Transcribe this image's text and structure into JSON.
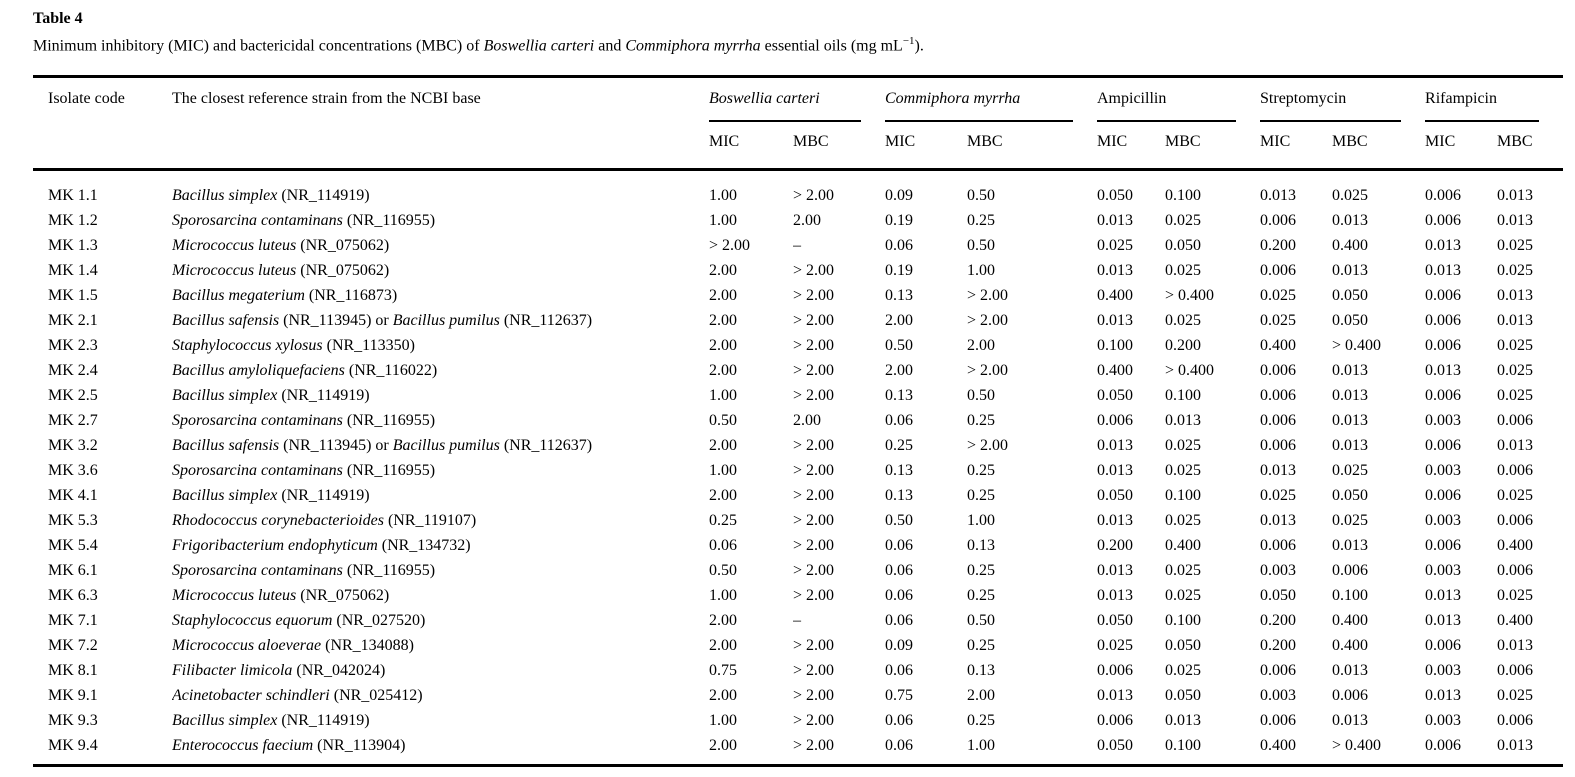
{
  "table": {
    "label": "Table 4",
    "caption": {
      "text_1": "Minimum inhibitory (MIC) and bactericidal concentrations (MBC) of ",
      "italic_1": "Boswellia carteri",
      "text_2": " and ",
      "italic_2": "Commiphora myrrha",
      "text_3": " essential oils (mg mL",
      "superscript": "−1",
      "text_4": ")."
    },
    "header": {
      "col_isolate": "Isolate code",
      "col_strain": "The closest reference strain from the NCBI base",
      "groups": [
        {
          "label": "Boswellia carteri",
          "italic": true
        },
        {
          "label": "Commiphora myrrha",
          "italic": true
        },
        {
          "label": "Ampicillin",
          "italic": false
        },
        {
          "label": "Streptomycin",
          "italic": false
        },
        {
          "label": "Rifampicin",
          "italic": false
        }
      ],
      "sub_mic": "MIC",
      "sub_mbc": "MBC"
    },
    "rows": [
      {
        "code": "MK 1.1",
        "strain": [
          {
            "species": "Bacillus simplex",
            "accession": "(NR_114919)"
          }
        ],
        "values": [
          "1.00",
          "> 2.00",
          "0.09",
          "0.50",
          "0.050",
          "0.100",
          "0.013",
          "0.025",
          "0.006",
          "0.013"
        ]
      },
      {
        "code": "MK 1.2",
        "strain": [
          {
            "species": "Sporosarcina contaminans",
            "accession": "(NR_116955)"
          }
        ],
        "values": [
          "1.00",
          "2.00",
          "0.19",
          "0.25",
          "0.013",
          "0.025",
          "0.006",
          "0.013",
          "0.006",
          "0.013"
        ]
      },
      {
        "code": "MK 1.3",
        "strain": [
          {
            "species": "Micrococcus luteus",
            "accession": "(NR_075062)"
          }
        ],
        "values": [
          "> 2.00",
          "–",
          "0.06",
          "0.50",
          "0.025",
          "0.050",
          "0.200",
          "0.400",
          "0.013",
          "0.025"
        ]
      },
      {
        "code": "MK 1.4",
        "strain": [
          {
            "species": "Micrococcus luteus",
            "accession": "(NR_075062)"
          }
        ],
        "values": [
          "2.00",
          "> 2.00",
          "0.19",
          "1.00",
          "0.013",
          "0.025",
          "0.006",
          "0.013",
          "0.013",
          "0.025"
        ]
      },
      {
        "code": "MK 1.5",
        "strain": [
          {
            "species": "Bacillus megaterium",
            "accession": "(NR_116873)"
          }
        ],
        "values": [
          "2.00",
          "> 2.00",
          "0.13",
          "> 2.00",
          "0.400",
          "> 0.400",
          "0.025",
          "0.050",
          "0.006",
          "0.013"
        ]
      },
      {
        "code": "MK 2.1",
        "strain": [
          {
            "species": "Bacillus safensis",
            "accession": "(NR_113945)"
          },
          {
            "species": "Bacillus pumilus",
            "accession": "(NR_112637)"
          }
        ],
        "values": [
          "2.00",
          "> 2.00",
          "2.00",
          "> 2.00",
          "0.013",
          "0.025",
          "0.025",
          "0.050",
          "0.006",
          "0.013"
        ]
      },
      {
        "code": "MK 2.3",
        "strain": [
          {
            "species": "Staphylococcus xylosus",
            "accession": "(NR_113350)"
          }
        ],
        "values": [
          "2.00",
          "> 2.00",
          "0.50",
          "2.00",
          "0.100",
          "0.200",
          "0.400",
          "> 0.400",
          "0.006",
          "0.025"
        ]
      },
      {
        "code": "MK 2.4",
        "strain": [
          {
            "species": "Bacillus amyloliquefaciens",
            "accession": "(NR_116022)"
          }
        ],
        "values": [
          "2.00",
          "> 2.00",
          "2.00",
          "> 2.00",
          "0.400",
          "> 0.400",
          "0.006",
          "0.013",
          "0.013",
          "0.025"
        ]
      },
      {
        "code": "MK 2.5",
        "strain": [
          {
            "species": "Bacillus simplex",
            "accession": "(NR_114919)"
          }
        ],
        "values": [
          "1.00",
          "> 2.00",
          "0.13",
          "0.50",
          "0.050",
          "0.100",
          "0.006",
          "0.013",
          "0.006",
          "0.025"
        ]
      },
      {
        "code": "MK 2.7",
        "strain": [
          {
            "species": "Sporosarcina contaminans",
            "accession": "(NR_116955)"
          }
        ],
        "values": [
          "0.50",
          "2.00",
          "0.06",
          "0.25",
          "0.006",
          "0.013",
          "0.006",
          "0.013",
          "0.003",
          "0.006"
        ]
      },
      {
        "code": "MK 3.2",
        "strain": [
          {
            "species": "Bacillus safensis",
            "accession": "(NR_113945)"
          },
          {
            "species": "Bacillus pumilus",
            "accession": "(NR_112637)"
          }
        ],
        "values": [
          "2.00",
          "> 2.00",
          "0.25",
          "> 2.00",
          "0.013",
          "0.025",
          "0.006",
          "0.013",
          "0.006",
          "0.013"
        ]
      },
      {
        "code": "MK 3.6",
        "strain": [
          {
            "species": "Sporosarcina contaminans",
            "accession": "(NR_116955)"
          }
        ],
        "values": [
          "1.00",
          "> 2.00",
          "0.13",
          "0.25",
          "0.013",
          "0.025",
          "0.013",
          "0.025",
          "0.003",
          "0.006"
        ]
      },
      {
        "code": "MK 4.1",
        "strain": [
          {
            "species": "Bacillus simplex",
            "accession": "(NR_114919)"
          }
        ],
        "values": [
          "2.00",
          "> 2.00",
          "0.13",
          "0.25",
          "0.050",
          "0.100",
          "0.025",
          "0.050",
          "0.006",
          "0.025"
        ]
      },
      {
        "code": "MK 5.3",
        "strain": [
          {
            "species": "Rhodococcus corynebacterioides",
            "accession": "(NR_119107)"
          }
        ],
        "values": [
          "0.25",
          "> 2.00",
          "0.50",
          "1.00",
          "0.013",
          "0.025",
          "0.013",
          "0.025",
          "0.003",
          "0.006"
        ]
      },
      {
        "code": "MK 5.4",
        "strain": [
          {
            "species": "Frigoribacterium endophyticum",
            "accession": "(NR_134732)"
          }
        ],
        "values": [
          "0.06",
          "> 2.00",
          "0.06",
          "0.13",
          "0.200",
          "0.400",
          "0.006",
          "0.013",
          "0.006",
          "0.400"
        ]
      },
      {
        "code": "MK 6.1",
        "strain": [
          {
            "species": "Sporosarcina contaminans",
            "accession": "(NR_116955)"
          }
        ],
        "values": [
          "0.50",
          "> 2.00",
          "0.06",
          "0.25",
          "0.013",
          "0.025",
          "0.003",
          "0.006",
          "0.003",
          "0.006"
        ]
      },
      {
        "code": "MK 6.3",
        "strain": [
          {
            "species": "Micrococcus luteus",
            "accession": "(NR_075062)"
          }
        ],
        "values": [
          "1.00",
          "> 2.00",
          "0.06",
          "0.25",
          "0.013",
          "0.025",
          "0.050",
          "0.100",
          "0.013",
          "0.025"
        ]
      },
      {
        "code": "MK 7.1",
        "strain": [
          {
            "species": "Staphylococcus equorum",
            "accession": "(NR_027520)"
          }
        ],
        "values": [
          "2.00",
          "–",
          "0.06",
          "0.50",
          "0.050",
          "0.100",
          "0.200",
          "0.400",
          "0.013",
          "0.400"
        ]
      },
      {
        "code": "MK 7.2",
        "strain": [
          {
            "species": "Micrococcus aloeverae",
            "accession": "(NR_134088)"
          }
        ],
        "values": [
          "2.00",
          "> 2.00",
          "0.09",
          "0.25",
          "0.025",
          "0.050",
          "0.200",
          "0.400",
          "0.006",
          "0.013"
        ]
      },
      {
        "code": "MK 8.1",
        "strain": [
          {
            "species": "Filibacter limicola",
            "accession": "(NR_042024)"
          }
        ],
        "values": [
          "0.75",
          "> 2.00",
          "0.06",
          "0.13",
          "0.006",
          "0.025",
          "0.006",
          "0.013",
          "0.003",
          "0.006"
        ]
      },
      {
        "code": "MK 9.1",
        "strain": [
          {
            "species": "Acinetobacter schindleri",
            "accession": "(NR_025412)"
          }
        ],
        "values": [
          "2.00",
          "> 2.00",
          "0.75",
          "2.00",
          "0.013",
          "0.050",
          "0.003",
          "0.006",
          "0.013",
          "0.025"
        ]
      },
      {
        "code": "MK 9.3",
        "strain": [
          {
            "species": "Bacillus simplex",
            "accession": "(NR_114919)"
          }
        ],
        "values": [
          "1.00",
          "> 2.00",
          "0.06",
          "0.25",
          "0.006",
          "0.013",
          "0.006",
          "0.013",
          "0.003",
          "0.006"
        ]
      },
      {
        "code": "MK 9.4",
        "strain": [
          {
            "species": "Enterococcus faecium",
            "accession": "(NR_113904)"
          }
        ],
        "values": [
          "2.00",
          "> 2.00",
          "0.06",
          "1.00",
          "0.050",
          "0.100",
          "0.400",
          "> 0.400",
          "0.006",
          "0.013"
        ]
      }
    ],
    "strain_joiner": " or "
  }
}
